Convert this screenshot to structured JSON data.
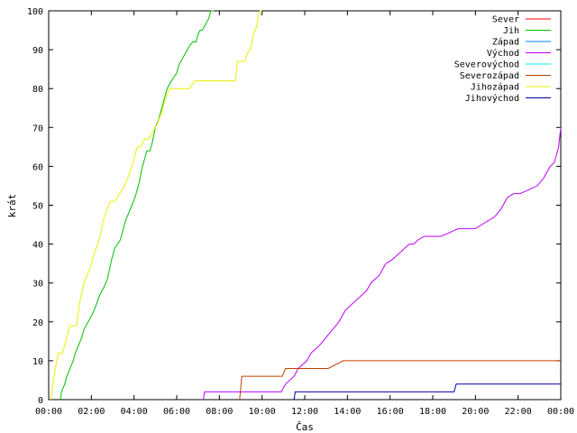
{
  "chart_data": {
    "type": "line",
    "title": "",
    "xlabel": "Čas",
    "ylabel": "krát",
    "xlim": [
      0,
      24
    ],
    "ylim": [
      0,
      100
    ],
    "x_ticks": [
      {
        "value": 0,
        "label": "00:00"
      },
      {
        "value": 2,
        "label": "02:00"
      },
      {
        "value": 4,
        "label": "04:00"
      },
      {
        "value": 6,
        "label": "06:00"
      },
      {
        "value": 8,
        "label": "08:00"
      },
      {
        "value": 10,
        "label": "10:00"
      },
      {
        "value": 12,
        "label": "12:00"
      },
      {
        "value": 14,
        "label": "14:00"
      },
      {
        "value": 16,
        "label": "16:00"
      },
      {
        "value": 18,
        "label": "18:00"
      },
      {
        "value": 20,
        "label": "20:00"
      },
      {
        "value": 22,
        "label": "22:00"
      },
      {
        "value": 24,
        "label": "00:00"
      }
    ],
    "y_ticks": [
      0,
      10,
      20,
      30,
      40,
      50,
      60,
      70,
      80,
      90,
      100
    ],
    "grid": false,
    "legend_position": "top-right",
    "series": [
      {
        "name": "Sever",
        "color": "#ff0000",
        "x": [],
        "y": []
      },
      {
        "name": "Jih",
        "color": "#00c000",
        "x": [
          0.55,
          0.6,
          0.75,
          0.85,
          1.15,
          1.25,
          1.55,
          1.65,
          1.85,
          2.05,
          2.2,
          2.4,
          2.6,
          2.75,
          2.95,
          3.1,
          3.35,
          3.45,
          3.6,
          3.75,
          3.9,
          4.05,
          4.25,
          4.35,
          4.5,
          4.6,
          4.75,
          4.85,
          5.0,
          5.15,
          5.3,
          5.45,
          5.55,
          5.75,
          6.0,
          6.1,
          6.2,
          6.3,
          6.4,
          6.5,
          6.6,
          6.75,
          6.9,
          7.0,
          7.1,
          7.2,
          7.3,
          7.4,
          7.5,
          7.55,
          7.6,
          7.75
        ],
        "y": [
          0,
          2,
          4,
          6,
          10,
          12,
          16,
          18,
          20,
          22,
          24,
          27,
          29,
          31,
          36,
          39,
          41,
          43,
          46,
          48,
          50,
          52,
          56,
          59,
          62,
          64,
          64,
          66,
          70,
          72,
          75,
          78,
          80,
          82,
          84,
          86,
          87,
          88,
          89,
          90,
          91,
          92,
          92,
          94,
          95,
          95,
          96,
          97,
          98,
          99,
          100,
          100
        ]
      },
      {
        "name": "Západ",
        "color": "#0080ff",
        "x": [],
        "y": []
      },
      {
        "name": "Východ",
        "color": "#c000ff",
        "x": [
          7.25,
          7.3,
          9.0,
          10.9,
          11.1,
          11.5,
          11.7,
          11.9,
          12.1,
          12.3,
          12.5,
          12.7,
          13.0,
          13.3,
          13.6,
          13.9,
          14.1,
          14.3,
          14.5,
          14.7,
          14.9,
          15.1,
          15.3,
          15.5,
          15.8,
          16.1,
          16.3,
          16.5,
          16.7,
          16.9,
          17.1,
          17.3,
          17.6,
          18.0,
          18.4,
          18.8,
          19.2,
          19.6,
          20.0,
          20.3,
          20.6,
          20.9,
          21.2,
          21.5,
          21.8,
          22.1,
          22.5,
          22.9,
          23.2,
          23.5,
          23.7,
          23.8,
          23.9,
          24.0
        ],
        "y": [
          0,
          2,
          2,
          2,
          4,
          6,
          8,
          9,
          10,
          12,
          13,
          14,
          16,
          18,
          20,
          23,
          24,
          25,
          26,
          27,
          28,
          30,
          31,
          32,
          35,
          36,
          37,
          38,
          39,
          40,
          40,
          41,
          42,
          42,
          42,
          43,
          44,
          44,
          44,
          45,
          46,
          47,
          49,
          52,
          53,
          53,
          54,
          55,
          57,
          60,
          61,
          63,
          65,
          70
        ]
      },
      {
        "name": "Severovýchod",
        "color": "#00eeee",
        "x": [],
        "y": []
      },
      {
        "name": "Severozápad",
        "color": "#c04000",
        "x": [
          8.95,
          9.05,
          10.95,
          11.1,
          12.9,
          13.1,
          13.8,
          24.0
        ],
        "y": [
          0,
          6,
          6,
          8,
          8,
          8,
          10,
          10
        ]
      },
      {
        "name": "Jihozápad",
        "color": "#eeee00",
        "x": [
          0.1,
          0.25,
          0.45,
          0.65,
          0.85,
          1.0,
          1.3,
          1.45,
          1.65,
          1.8,
          1.95,
          2.15,
          2.3,
          2.45,
          2.55,
          2.75,
          2.9,
          3.1,
          3.55,
          3.7,
          3.85,
          4.0,
          4.15,
          4.3,
          4.5,
          4.65,
          4.9,
          5.1,
          5.3,
          5.45,
          5.65,
          5.8,
          5.95,
          6.25,
          6.6,
          6.7,
          6.85,
          7.1,
          8.75,
          8.85,
          9.2,
          9.3,
          9.45,
          9.6,
          9.75,
          9.8,
          9.9,
          10.0
        ],
        "y": [
          0,
          6,
          12,
          12,
          16,
          19,
          19,
          25,
          30,
          32,
          34,
          38,
          40,
          43,
          46,
          49,
          51,
          51,
          55,
          57,
          59,
          62,
          65,
          65,
          67,
          67,
          69,
          71,
          74,
          77,
          80,
          80,
          80,
          80,
          80,
          81,
          82,
          82,
          82,
          87,
          87,
          89,
          90,
          94,
          96,
          98,
          100,
          100
        ]
      },
      {
        "name": "Jihovýchod",
        "color": "#0000a0",
        "x": [
          11.5,
          11.55,
          19.0,
          19.1,
          24.0
        ],
        "y": [
          0,
          2,
          2,
          4,
          4
        ]
      }
    ]
  }
}
